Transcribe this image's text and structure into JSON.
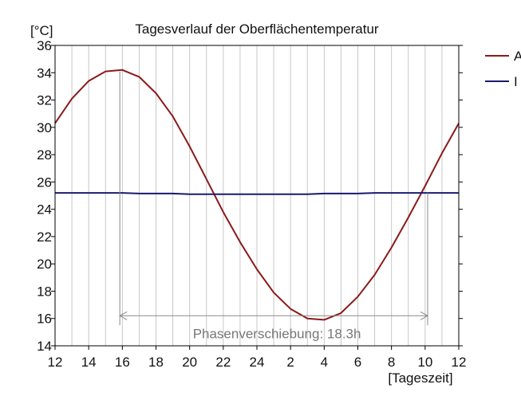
{
  "chart_data": {
    "type": "line",
    "title": "Tagesverlauf der Oberflächentemperatur",
    "ylabel": "[°C]",
    "xlabel": "[Tageszeit]",
    "ylim": [
      14,
      36
    ],
    "yticks": [
      14,
      16,
      18,
      20,
      22,
      24,
      26,
      28,
      30,
      32,
      34,
      36
    ],
    "xlim": [
      0,
      24
    ],
    "xtick_labels": [
      "12",
      "14",
      "16",
      "18",
      "20",
      "22",
      "24",
      "2",
      "4",
      "6",
      "8",
      "10",
      "12"
    ],
    "grid": "vertical",
    "legend": "right",
    "x": [
      0,
      1,
      2,
      3,
      4,
      5,
      6,
      7,
      8,
      9,
      10,
      11,
      12,
      13,
      14,
      15,
      16,
      17,
      18,
      19,
      20,
      21,
      22,
      23,
      24
    ],
    "series": [
      {
        "name": "A",
        "color": "#8b1a1a",
        "values": [
          30.3,
          32.1,
          33.4,
          34.1,
          34.2,
          33.7,
          32.5,
          30.8,
          28.6,
          26.2,
          23.8,
          21.6,
          19.6,
          17.9,
          16.7,
          16.0,
          15.9,
          16.4,
          17.6,
          19.2,
          21.2,
          23.4,
          25.7,
          28.1,
          30.3
        ]
      },
      {
        "name": "I",
        "color": "#1a1a6e",
        "values": [
          25.2,
          25.2,
          25.2,
          25.2,
          25.2,
          25.15,
          25.15,
          25.15,
          25.1,
          25.1,
          25.1,
          25.1,
          25.1,
          25.1,
          25.1,
          25.1,
          25.15,
          25.15,
          25.15,
          25.2,
          25.2,
          25.2,
          25.2,
          25.2,
          25.2
        ]
      }
    ],
    "annotation": {
      "label": "Phasenverschiebung: 18.3h",
      "x_start": 3.85,
      "x_end": 22.15,
      "y": 16.2
    }
  }
}
